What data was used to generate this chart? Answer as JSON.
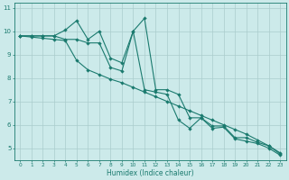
{
  "xlabel": "Humidex (Indice chaleur)",
  "xlim": [
    -0.5,
    23.5
  ],
  "ylim": [
    4.5,
    11.2
  ],
  "yticks": [
    5,
    6,
    7,
    8,
    9,
    10,
    11
  ],
  "xticks": [
    0,
    1,
    2,
    3,
    4,
    5,
    6,
    7,
    8,
    9,
    10,
    11,
    12,
    13,
    14,
    15,
    16,
    17,
    18,
    19,
    20,
    21,
    22,
    23
  ],
  "bg_color": "#cceaea",
  "grid_color": "#aacccc",
  "line_color": "#1a7a6e",
  "line1": {
    "x": [
      0,
      1,
      2,
      3,
      4,
      5,
      6,
      7,
      8,
      9,
      10,
      11,
      12,
      13,
      14,
      15,
      16,
      17,
      18,
      19,
      20,
      21,
      22,
      23
    ],
    "y": [
      9.8,
      9.8,
      9.8,
      9.8,
      10.05,
      10.45,
      9.65,
      10.0,
      8.85,
      8.65,
      10.0,
      10.55,
      7.5,
      7.5,
      7.3,
      6.3,
      6.3,
      5.95,
      5.95,
      5.45,
      5.45,
      5.25,
      5.1,
      4.75
    ]
  },
  "line2": {
    "x": [
      0,
      1,
      2,
      3,
      4,
      5,
      6,
      7,
      8,
      9,
      10,
      11,
      12,
      13,
      14,
      15,
      16,
      17,
      18,
      19,
      20,
      21,
      22,
      23
    ],
    "y": [
      9.8,
      9.8,
      9.8,
      9.8,
      9.65,
      9.65,
      9.5,
      9.5,
      8.45,
      8.3,
      10.0,
      7.5,
      7.4,
      7.3,
      6.2,
      5.85,
      6.3,
      5.85,
      5.9,
      5.4,
      5.3,
      5.2,
      5.0,
      4.7
    ]
  },
  "line3": {
    "x": [
      0,
      1,
      2,
      3,
      4,
      5,
      6,
      7,
      8,
      9,
      10,
      11,
      12,
      13,
      14,
      15,
      16,
      17,
      18,
      19,
      20,
      21,
      22,
      23
    ],
    "y": [
      9.8,
      9.75,
      9.7,
      9.65,
      9.6,
      8.75,
      8.35,
      8.15,
      7.95,
      7.8,
      7.6,
      7.4,
      7.2,
      7.0,
      6.8,
      6.6,
      6.4,
      6.2,
      6.0,
      5.8,
      5.6,
      5.35,
      5.1,
      4.8
    ]
  }
}
